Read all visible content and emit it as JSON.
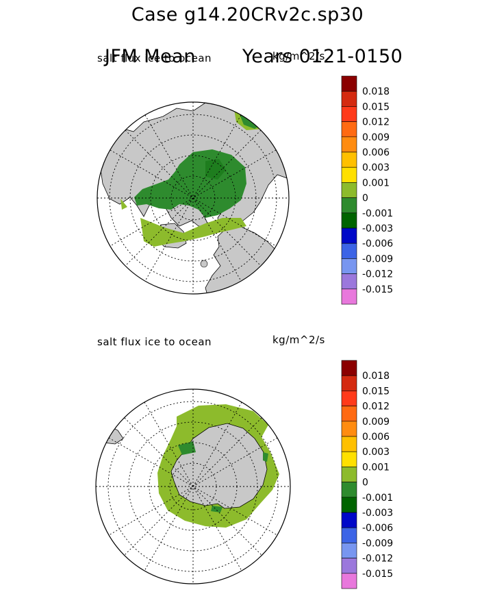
{
  "figure": {
    "title_line1": "Case g14.20CRv2c.sp30",
    "title_line2_left": "JFM Mean",
    "title_line2_right": "Years 0121-0150"
  },
  "colors": {
    "land": "#c8c8c8",
    "ocean": "#ffffff",
    "outline": "#000000"
  },
  "chart_data": [
    {
      "type": "heatmap",
      "subtype": "polar-stereographic map",
      "hemisphere": "north",
      "title": "salt flux ice to ocean",
      "units": "kg/m^2/s",
      "grid": true,
      "colorbar": {
        "colors": [
          "#8b0000",
          "#d42a10",
          "#ff3a1a",
          "#ff6a12",
          "#ff8c10",
          "#ffc000",
          "#ffe000",
          "#8dbb2c",
          "#2e8b2e",
          "#006400",
          "#0008c8",
          "#3c64e6",
          "#7896f0",
          "#9b78dc",
          "#e878dc"
        ],
        "labels": [
          "0.018",
          "0.015",
          "0.012",
          "0.009",
          "0.006",
          "0.003",
          "0.001",
          "0",
          "-0.001",
          "-0.003",
          "-0.006",
          "-0.009",
          "-0.012",
          "-0.015"
        ]
      },
      "fields": [
        {
          "region": "central Arctic basin",
          "range": "-0.001 to -0.003",
          "color_index": 8
        },
        {
          "region": "sea ice margin (Bering, Labrador, Greenland-Barents)",
          "range": "0 to 0.001",
          "color_index": 7
        }
      ]
    },
    {
      "type": "heatmap",
      "subtype": "polar-stereographic map",
      "hemisphere": "south",
      "title": "salt flux ice to ocean",
      "units": "kg/m^2/s",
      "grid": true,
      "colorbar": {
        "colors": [
          "#8b0000",
          "#d42a10",
          "#ff3a1a",
          "#ff6a12",
          "#ff8c10",
          "#ffc000",
          "#ffe000",
          "#8dbb2c",
          "#2e8b2e",
          "#006400",
          "#0008c8",
          "#3c64e6",
          "#7896f0",
          "#9b78dc",
          "#e878dc"
        ],
        "labels": [
          "0.018",
          "0.015",
          "0.012",
          "0.009",
          "0.006",
          "0.003",
          "0.001",
          "0",
          "-0.001",
          "-0.003",
          "-0.006",
          "-0.009",
          "-0.012",
          "-0.015"
        ]
      },
      "fields": [
        {
          "region": "Antarctic sea ice ring (Weddell, Ross)",
          "range": "0 to 0.001",
          "color_index": 7
        },
        {
          "region": "coastal polynyas",
          "range": "-0.001 to -0.003",
          "color_index": 8
        }
      ]
    }
  ]
}
